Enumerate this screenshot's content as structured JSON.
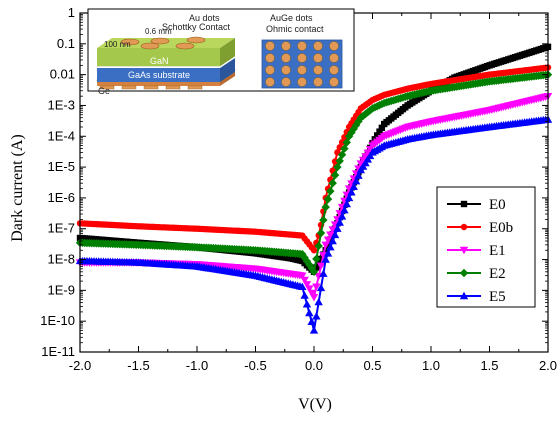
{
  "chart_data": {
    "type": "line",
    "xlabel": "V(V)",
    "ylabel": "Dark current (A)",
    "xlim": [
      -2.0,
      2.0
    ],
    "ylim_log10": [
      -11,
      0
    ],
    "y_scale": "log",
    "x_ticks": [
      "-2.0",
      "-1.5",
      "-1.0",
      "-0.5",
      "0.0",
      "0.5",
      "1.0",
      "1.5",
      "2.0"
    ],
    "y_ticks": [
      "1E-11",
      "1E-10",
      "1E-9",
      "1E-8",
      "1E-7",
      "1E-6",
      "1E-5",
      "1E-4",
      "1E-3",
      "0.01",
      "0.1",
      "1"
    ],
    "legend_position": "right",
    "series": [
      {
        "name": "E0",
        "color": "#000000",
        "marker": "square",
        "x": [
          -2.0,
          -1.5,
          -1.0,
          -0.5,
          -0.2,
          -0.1,
          0.0,
          0.1,
          0.2,
          0.3,
          0.4,
          0.5,
          0.6,
          0.8,
          1.0,
          1.2,
          1.5,
          2.0
        ],
        "y": [
          5e-08,
          3.5e-08,
          2.5e-08,
          1.6e-08,
          1.1e-08,
          9e-09,
          4e-09,
          2e-08,
          1.5e-07,
          1.5e-06,
          1e-05,
          6e-05,
          0.00025,
          0.001,
          0.003,
          0.008,
          0.02,
          0.08
        ]
      },
      {
        "name": "E0b",
        "color": "#ff0000",
        "marker": "circle",
        "x": [
          -2.0,
          -1.5,
          -1.0,
          -0.5,
          -0.1,
          0.0,
          0.05,
          0.1,
          0.2,
          0.3,
          0.4,
          0.5,
          0.6,
          0.8,
          1.0,
          1.5,
          2.0
        ],
        "y": [
          1.5e-07,
          1.2e-07,
          1e-07,
          8e-08,
          6e-08,
          2e-08,
          8e-08,
          1e-06,
          3e-05,
          0.0002,
          0.0008,
          0.0015,
          0.0022,
          0.0035,
          0.005,
          0.01,
          0.017
        ]
      },
      {
        "name": "E1",
        "color": "#ff00ff",
        "marker": "triangle-down",
        "x": [
          -2.0,
          -1.5,
          -1.0,
          -0.5,
          -0.1,
          0.0,
          0.1,
          0.2,
          0.3,
          0.4,
          0.5,
          0.6,
          0.8,
          1.0,
          1.5,
          2.0
        ],
        "y": [
          8e-09,
          8e-09,
          7e-09,
          5e-09,
          3e-09,
          6e-10,
          3e-08,
          2e-07,
          2e-06,
          1.3e-05,
          5e-05,
          0.0001,
          0.0002,
          0.0003,
          0.0007,
          0.002
        ]
      },
      {
        "name": "E2",
        "color": "#008000",
        "marker": "diamond",
        "x": [
          -2.0,
          -1.5,
          -1.0,
          -0.5,
          -0.1,
          0.0,
          0.1,
          0.2,
          0.3,
          0.4,
          0.5,
          0.6,
          0.8,
          1.0,
          1.5,
          2.0
        ],
        "y": [
          3.5e-08,
          3e-08,
          2.5e-08,
          2e-08,
          1.5e-08,
          4e-09,
          5e-07,
          1e-05,
          0.0001,
          0.0004,
          0.0008,
          0.0012,
          0.002,
          0.003,
          0.006,
          0.01
        ]
      },
      {
        "name": "E5",
        "color": "#0000ff",
        "marker": "triangle-up",
        "x": [
          -2.0,
          -1.5,
          -1.0,
          -0.5,
          -0.1,
          0.0,
          0.1,
          0.2,
          0.3,
          0.4,
          0.5,
          0.6,
          0.8,
          1.0,
          1.5,
          2.0
        ],
        "y": [
          9e-09,
          8e-09,
          6e-09,
          3e-09,
          1.3e-09,
          5e-11,
          1e-08,
          1e-07,
          1e-06,
          8e-06,
          3e-05,
          5e-05,
          8e-05,
          0.00011,
          0.0002,
          0.00035
        ]
      }
    ],
    "inset": {
      "device": {
        "label_au_dots": "Au dots",
        "label_schottky": "Schottky Contact",
        "label_100nm": "100 nm",
        "label_06mm": "0.6 mm",
        "label_gan": "GaN",
        "label_gaas": "GaAs substrate",
        "label_ge": "Ge"
      },
      "top_view": {
        "label_auge": "AuGe dots",
        "label_ohmic": "Ohmic contact"
      }
    }
  }
}
